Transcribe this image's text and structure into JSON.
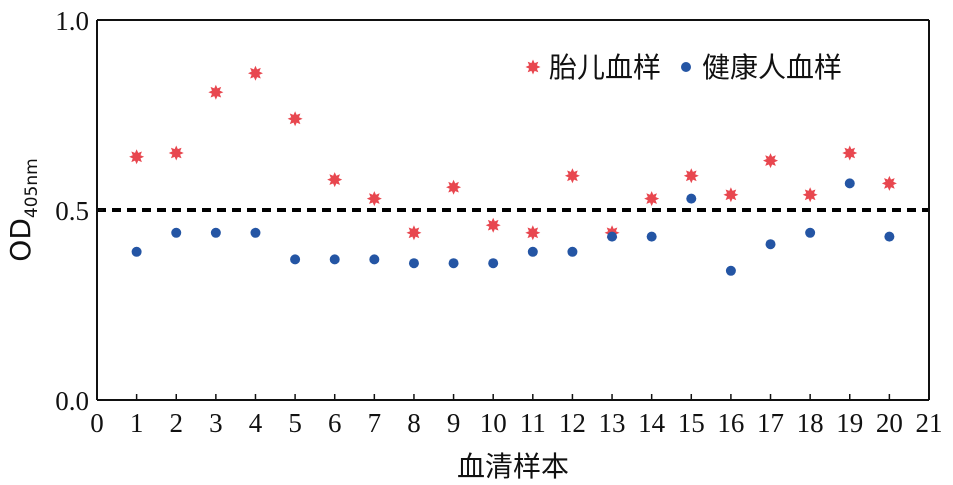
{
  "chart_data": {
    "type": "scatter",
    "xlabel": "血清样本",
    "ylabel_main": "OD",
    "ylabel_sub": "405nm",
    "xlim": [
      0,
      21
    ],
    "ylim": [
      0.0,
      1.0
    ],
    "x_ticks": [
      0,
      1,
      2,
      3,
      4,
      5,
      6,
      7,
      8,
      9,
      10,
      11,
      12,
      13,
      14,
      15,
      16,
      17,
      18,
      19,
      20,
      21
    ],
    "y_ticks": [
      "0.0",
      "0.5",
      "1.0"
    ],
    "y_tick_values": [
      0.0,
      0.5,
      1.0
    ],
    "threshold": 0.5,
    "legend_position": "top-right",
    "series": [
      {
        "name": "胎儿血样",
        "marker": "star",
        "color": "#e8474f",
        "x": [
          1,
          2,
          3,
          4,
          5,
          6,
          7,
          8,
          9,
          10,
          11,
          12,
          13,
          14,
          15,
          16,
          17,
          18,
          19,
          20
        ],
        "values": [
          0.64,
          0.65,
          0.81,
          0.86,
          0.74,
          0.58,
          0.53,
          0.44,
          0.56,
          0.46,
          0.44,
          0.59,
          0.44,
          0.53,
          0.59,
          0.54,
          0.63,
          0.54,
          0.65,
          0.57
        ]
      },
      {
        "name": "健康人血样",
        "marker": "circle",
        "color": "#2455a4",
        "x": [
          1,
          2,
          3,
          4,
          5,
          6,
          7,
          8,
          9,
          10,
          11,
          12,
          13,
          14,
          15,
          16,
          17,
          18,
          19,
          20
        ],
        "values": [
          0.39,
          0.44,
          0.44,
          0.44,
          0.37,
          0.37,
          0.37,
          0.36,
          0.36,
          0.36,
          0.39,
          0.39,
          0.43,
          0.43,
          0.53,
          0.34,
          0.41,
          0.44,
          0.57,
          0.43
        ]
      }
    ]
  }
}
